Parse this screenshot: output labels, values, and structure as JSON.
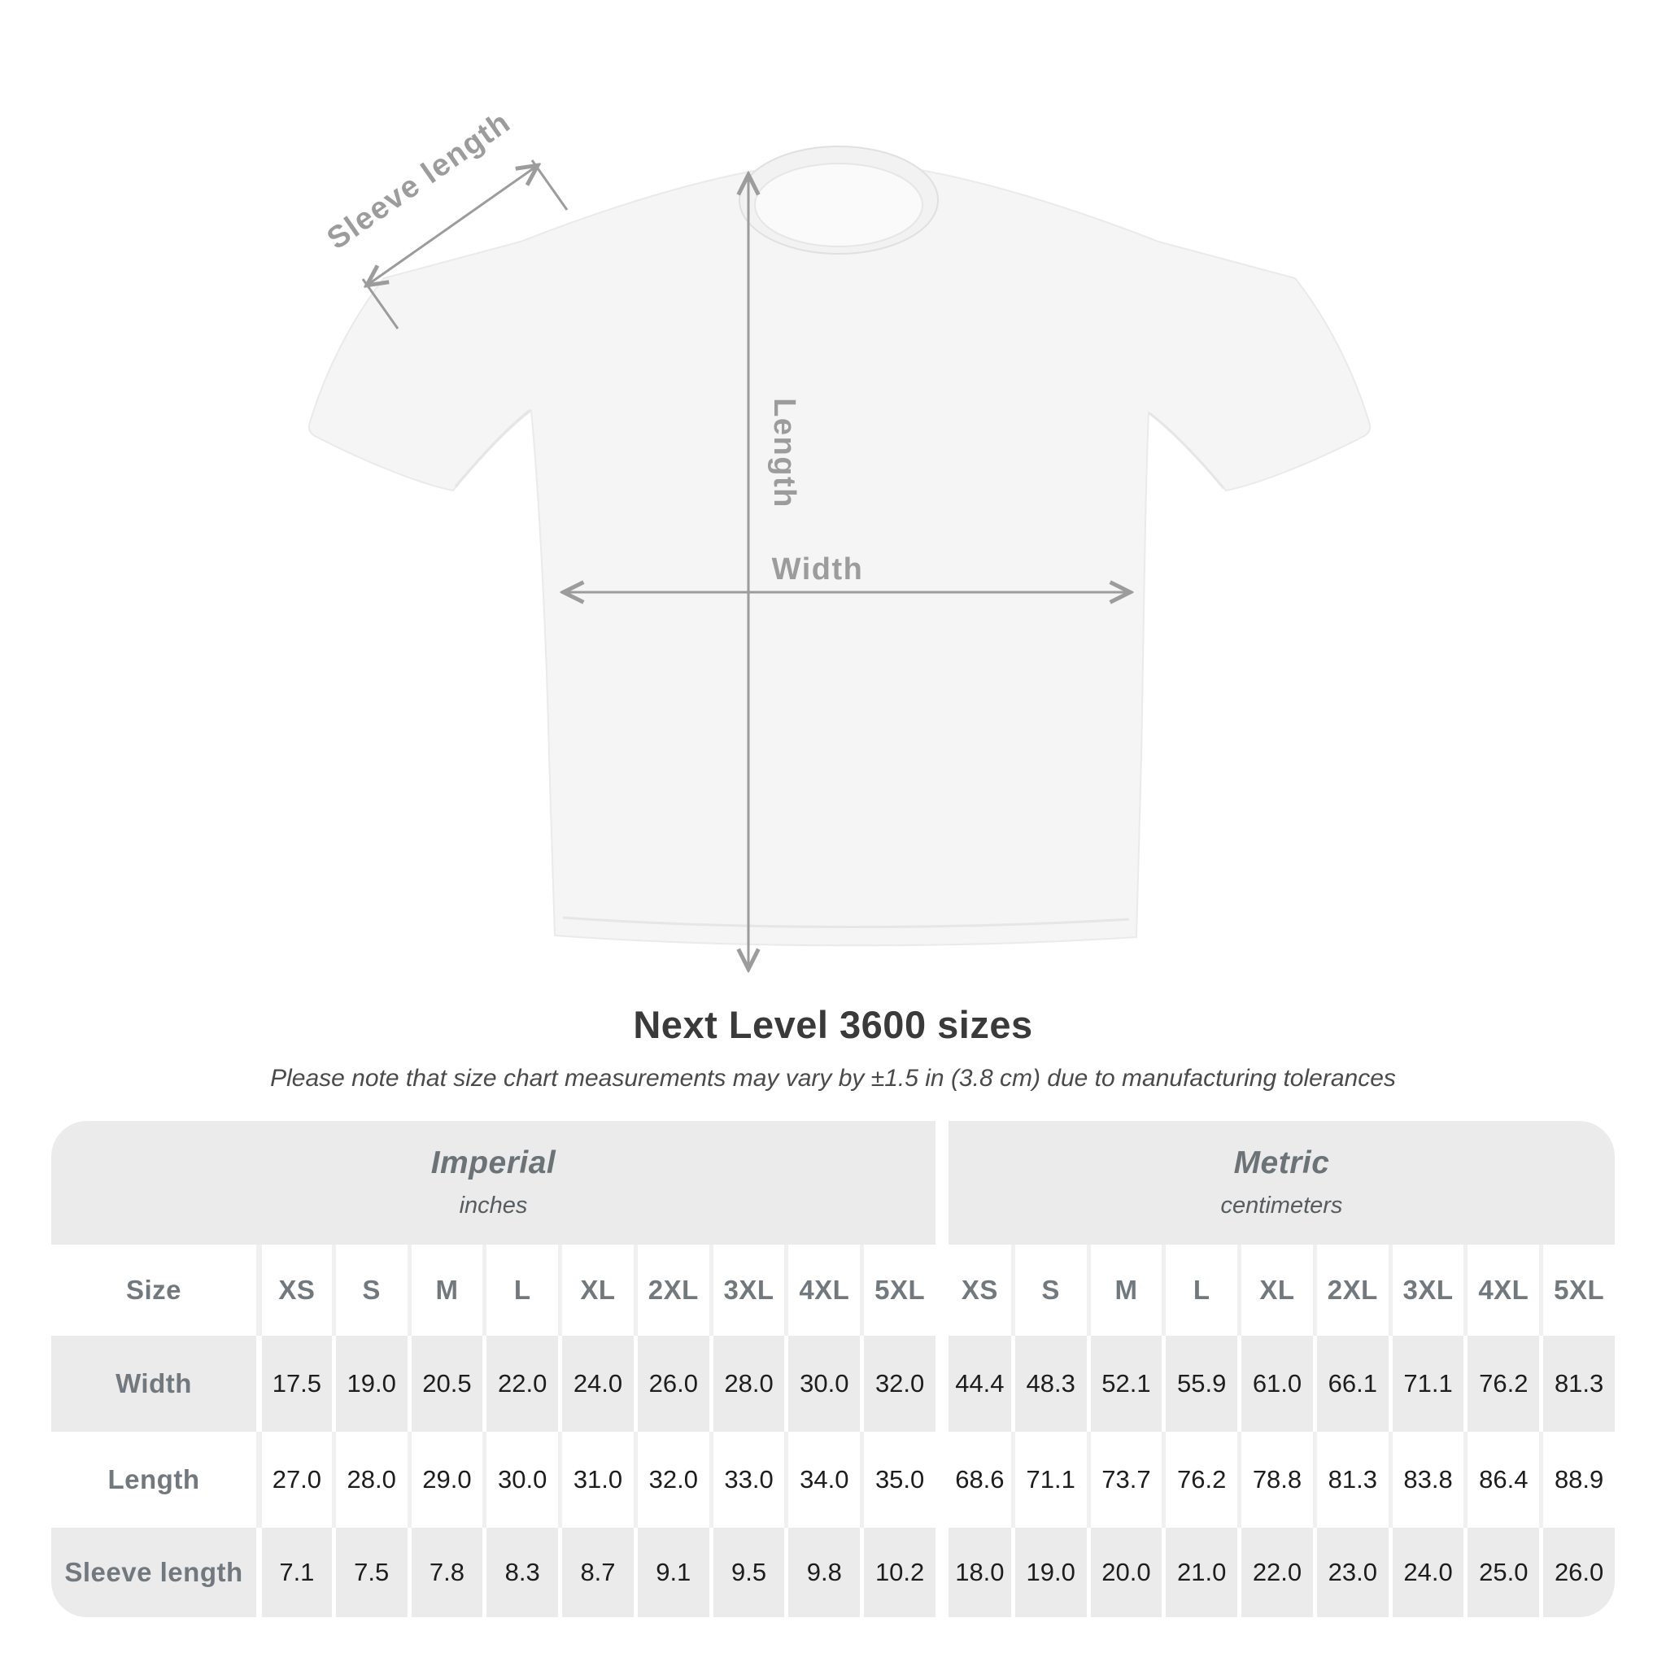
{
  "diagram": {
    "sleeve_label": "Sleeve length",
    "length_label": "Length",
    "width_label": "Width"
  },
  "heading": {
    "title": "Next Level 3600 sizes",
    "subtitle": "Please note that size chart measurements may vary by ±1.5 in (3.8 cm) due to manufacturing tolerances"
  },
  "table": {
    "size_header": "Size",
    "sizes": [
      "XS",
      "S",
      "M",
      "L",
      "XL",
      "2XL",
      "3XL",
      "4XL",
      "5XL"
    ],
    "sections": [
      {
        "name": "Imperial",
        "unit": "inches"
      },
      {
        "name": "Metric",
        "unit": "centimeters"
      }
    ],
    "rows": [
      {
        "label": "Width",
        "imperial": [
          "17.5",
          "19.0",
          "20.5",
          "22.0",
          "24.0",
          "26.0",
          "28.0",
          "30.0",
          "32.0"
        ],
        "metric": [
          "44.4",
          "48.3",
          "52.1",
          "55.9",
          "61.0",
          "66.1",
          "71.1",
          "76.2",
          "81.3"
        ]
      },
      {
        "label": "Length",
        "imperial": [
          "27.0",
          "28.0",
          "29.0",
          "30.0",
          "31.0",
          "32.0",
          "33.0",
          "34.0",
          "35.0"
        ],
        "metric": [
          "68.6",
          "71.1",
          "73.7",
          "76.2",
          "78.8",
          "81.3",
          "83.8",
          "86.4",
          "88.9"
        ]
      },
      {
        "label": "Sleeve length",
        "imperial": [
          "7.1",
          "7.5",
          "7.8",
          "8.3",
          "8.7",
          "9.1",
          "9.5",
          "9.8",
          "10.2"
        ],
        "metric": [
          "18.0",
          "19.0",
          "20.0",
          "21.0",
          "22.0",
          "23.0",
          "24.0",
          "25.0",
          "26.0"
        ]
      }
    ]
  },
  "chart_data": {
    "type": "table",
    "title": "Next Level 3600 sizes",
    "note": "Measurements may vary by ±1.5 in (3.8 cm) due to manufacturing tolerances",
    "columns": [
      "XS",
      "S",
      "M",
      "L",
      "XL",
      "2XL",
      "3XL",
      "4XL",
      "5XL"
    ],
    "units": {
      "imperial": "inches",
      "metric": "centimeters"
    },
    "series": [
      {
        "name": "Width (in)",
        "values": [
          17.5,
          19.0,
          20.5,
          22.0,
          24.0,
          26.0,
          28.0,
          30.0,
          32.0
        ]
      },
      {
        "name": "Length (in)",
        "values": [
          27.0,
          28.0,
          29.0,
          30.0,
          31.0,
          32.0,
          33.0,
          34.0,
          35.0
        ]
      },
      {
        "name": "Sleeve length (in)",
        "values": [
          7.1,
          7.5,
          7.8,
          8.3,
          8.7,
          9.1,
          9.5,
          9.8,
          10.2
        ]
      },
      {
        "name": "Width (cm)",
        "values": [
          44.4,
          48.3,
          52.1,
          55.9,
          61.0,
          66.1,
          71.1,
          76.2,
          81.3
        ]
      },
      {
        "name": "Length (cm)",
        "values": [
          68.6,
          71.1,
          73.7,
          76.2,
          78.8,
          81.3,
          83.8,
          86.4,
          88.9
        ]
      },
      {
        "name": "Sleeve length (cm)",
        "values": [
          18.0,
          19.0,
          20.0,
          21.0,
          22.0,
          23.0,
          24.0,
          25.0,
          26.0
        ]
      }
    ]
  },
  "colors": {
    "band_bg": "#ebebeb",
    "alt_row_bg": "#ebebeb",
    "header_text": "#72797e",
    "number_text": "#1d1d1d",
    "diagram_gray": "#9c9c9c",
    "title_text": "#3a3a3a",
    "shirt_fill": "#f5f5f5"
  }
}
